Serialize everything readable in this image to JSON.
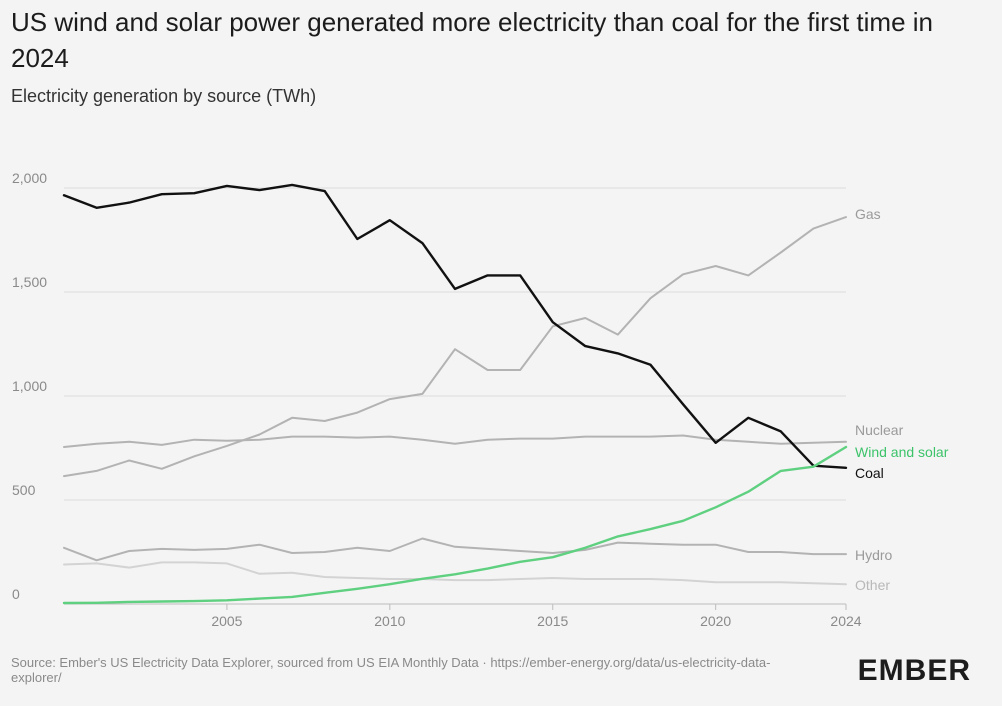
{
  "header": {
    "title": "US wind and solar power generated more electricity than coal for the first time in 2024",
    "subtitle": "Electricity generation by source (TWh)"
  },
  "footer": {
    "source": "Source: Ember's US Electricity Data Explorer, sourced from US EIA Monthly Data · https://ember-energy.org/data/us-electricity-data-explorer/",
    "logo": "EMBER"
  },
  "chart_data": {
    "type": "line",
    "title": "US wind and solar power generated more electricity than coal for the first time in 2024",
    "subtitle": "Electricity generation by source (TWh)",
    "x": [
      2000,
      2001,
      2002,
      2003,
      2004,
      2005,
      2006,
      2007,
      2008,
      2009,
      2010,
      2011,
      2012,
      2013,
      2014,
      2015,
      2016,
      2017,
      2018,
      2019,
      2020,
      2021,
      2022,
      2023,
      2024
    ],
    "xticks": [
      "2005",
      "2010",
      "2015",
      "2020",
      "2024"
    ],
    "yticks": [
      "0",
      "500",
      "1,000",
      "1,500",
      "2,000"
    ],
    "xlim": [
      2000,
      2024
    ],
    "ylim": [
      0,
      2100
    ],
    "grid": true,
    "legend": "inline-right",
    "series": [
      {
        "name": "Gas",
        "color": "#b3b3b3",
        "values": [
          615,
          640,
          690,
          650,
          710,
          760,
          815,
          895,
          880,
          920,
          985,
          1010,
          1225,
          1125,
          1125,
          1335,
          1375,
          1295,
          1470,
          1585,
          1625,
          1580,
          1690,
          1805,
          1860
        ]
      },
      {
        "name": "Nuclear",
        "color": "#b3b3b3",
        "values": [
          755,
          770,
          780,
          765,
          790,
          785,
          790,
          805,
          805,
          800,
          805,
          790,
          770,
          790,
          795,
          795,
          805,
          805,
          805,
          810,
          790,
          780,
          770,
          775,
          780
        ]
      },
      {
        "name": "Wind and solar",
        "color": "#5fd080",
        "values": [
          5,
          6,
          10,
          12,
          14,
          18,
          26,
          34,
          54,
          73,
          95,
          121,
          143,
          170,
          203,
          225,
          270,
          325,
          360,
          400,
          465,
          540,
          640,
          660,
          755
        ]
      },
      {
        "name": "Coal",
        "color": "#111111",
        "values": [
          1965,
          1905,
          1930,
          1970,
          1975,
          2010,
          1990,
          2015,
          1985,
          1755,
          1845,
          1735,
          1515,
          1580,
          1580,
          1355,
          1240,
          1205,
          1150,
          960,
          775,
          895,
          830,
          665,
          655
        ]
      },
      {
        "name": "Hydro",
        "color": "#b3b3b3",
        "values": [
          270,
          210,
          255,
          265,
          260,
          265,
          285,
          245,
          250,
          270,
          255,
          315,
          275,
          265,
          255,
          245,
          260,
          295,
          290,
          285,
          285,
          250,
          250,
          240,
          240
        ]
      },
      {
        "name": "Other",
        "color": "#d3d3d3",
        "values": [
          190,
          195,
          175,
          200,
          200,
          195,
          145,
          150,
          130,
          125,
          120,
          120,
          115,
          115,
          120,
          125,
          120,
          120,
          120,
          115,
          105,
          105,
          105,
          100,
          95
        ]
      }
    ]
  }
}
